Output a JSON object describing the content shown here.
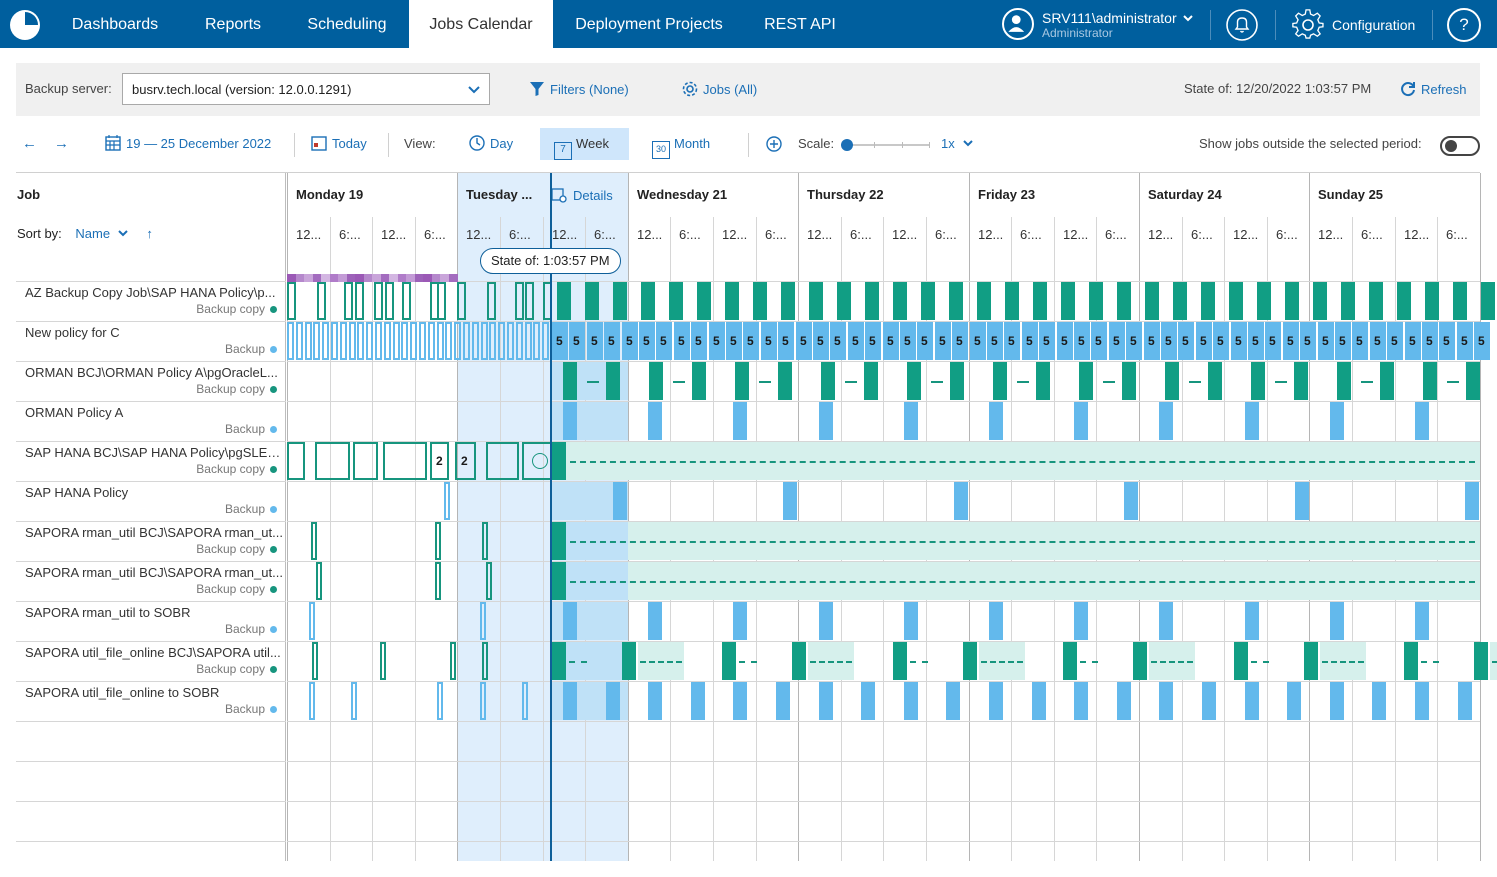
{
  "nav": {
    "tabs": [
      {
        "label": "Dashboards",
        "active": false
      },
      {
        "label": "Reports",
        "active": false
      },
      {
        "label": "Scheduling",
        "active": false
      },
      {
        "label": "Jobs Calendar",
        "active": true
      },
      {
        "label": "Deployment Projects",
        "active": false
      },
      {
        "label": "REST API",
        "active": false
      }
    ],
    "user_name": "SRV111\\administrator",
    "user_role": "Administrator",
    "configuration_label": "Configuration",
    "help_label": "?"
  },
  "server_bar": {
    "backup_server_label": "Backup server:",
    "backup_server_value": "busrv.tech.local (version: 12.0.0.1291)",
    "filters_label": "Filters (None)",
    "jobs_label": "Jobs (All)",
    "state_label": "State of: 12/20/2022 1:03:57 PM",
    "refresh_label": "Refresh"
  },
  "toolbar": {
    "prev_arrow": "←",
    "next_arrow": "→",
    "date_range": "19 — 25 December 2022",
    "today_label": "Today",
    "view_label": "View:",
    "day_label": "Day",
    "week_label": "Week",
    "month_label": "Month",
    "week_icon_day": "7",
    "month_icon_day": "30",
    "scale_label": "Scale:",
    "scale_value": "1x",
    "show_outside_label": "Show jobs outside the selected period:",
    "show_outside_enabled": false,
    "active_view": "Week"
  },
  "grid": {
    "job_header": "Job",
    "sort_by_label": "Sort by:",
    "sort_field": "Name",
    "sort_direction": "↑",
    "details_label": "Details",
    "state_pill": "State of: 1:03:57 PM",
    "days": [
      {
        "label": "Monday 19"
      },
      {
        "label": "Tuesday ..."
      },
      {
        "label": "Wednesday 21"
      },
      {
        "label": "Thursday 22"
      },
      {
        "label": "Friday 23"
      },
      {
        "label": "Saturday 24"
      },
      {
        "label": "Sunday 25"
      }
    ],
    "hour_labels": [
      "12...",
      "6:...",
      "12...",
      "6:..."
    ],
    "jobs": [
      {
        "name": "AZ Backup Copy Job\\SAP HANA Policy\\p...",
        "type": "Backup copy",
        "dot_color": "#17957e"
      },
      {
        "name": "New policy for C",
        "type": "Backup",
        "dot_color": "#63b9ec"
      },
      {
        "name": "ORMAN BCJ\\ORMAN Policy A\\pgOracleL...",
        "type": "Backup copy",
        "dot_color": "#17957e"
      },
      {
        "name": "ORMAN Policy A",
        "type": "Backup",
        "dot_color": "#63b9ec"
      },
      {
        "name": "SAP HANA BCJ\\SAP HANA Policy\\pgSLES...",
        "type": "Backup copy",
        "dot_color": "#17957e"
      },
      {
        "name": "SAP HANA Policy",
        "type": "Backup",
        "dot_color": "#63b9ec"
      },
      {
        "name": "SAPORA rman_util BCJ\\SAPORA rman_ut...",
        "type": "Backup copy",
        "dot_color": "#17957e"
      },
      {
        "name": "SAPORA rman_util BCJ\\SAPORA rman_ut...",
        "type": "Backup copy",
        "dot_color": "#17957e"
      },
      {
        "name": "SAPORA rman_util to SOBR",
        "type": "Backup",
        "dot_color": "#63b9ec"
      },
      {
        "name": "SAPORA util_file_online BCJ\\SAPORA util...",
        "type": "Backup copy",
        "dot_color": "#17957e"
      },
      {
        "name": "SAPORA util_file_online to SOBR",
        "type": "Backup",
        "dot_color": "#63b9ec"
      }
    ],
    "badge_counts": {
      "sap_hana_bcj": "2",
      "new_policy": "5"
    }
  },
  "colors": {
    "nav_bg": "#005f9e",
    "teal": "#119e84",
    "blue": "#63b9ec",
    "link": "#1b6fb6",
    "selected_day": "#dfeefc"
  }
}
